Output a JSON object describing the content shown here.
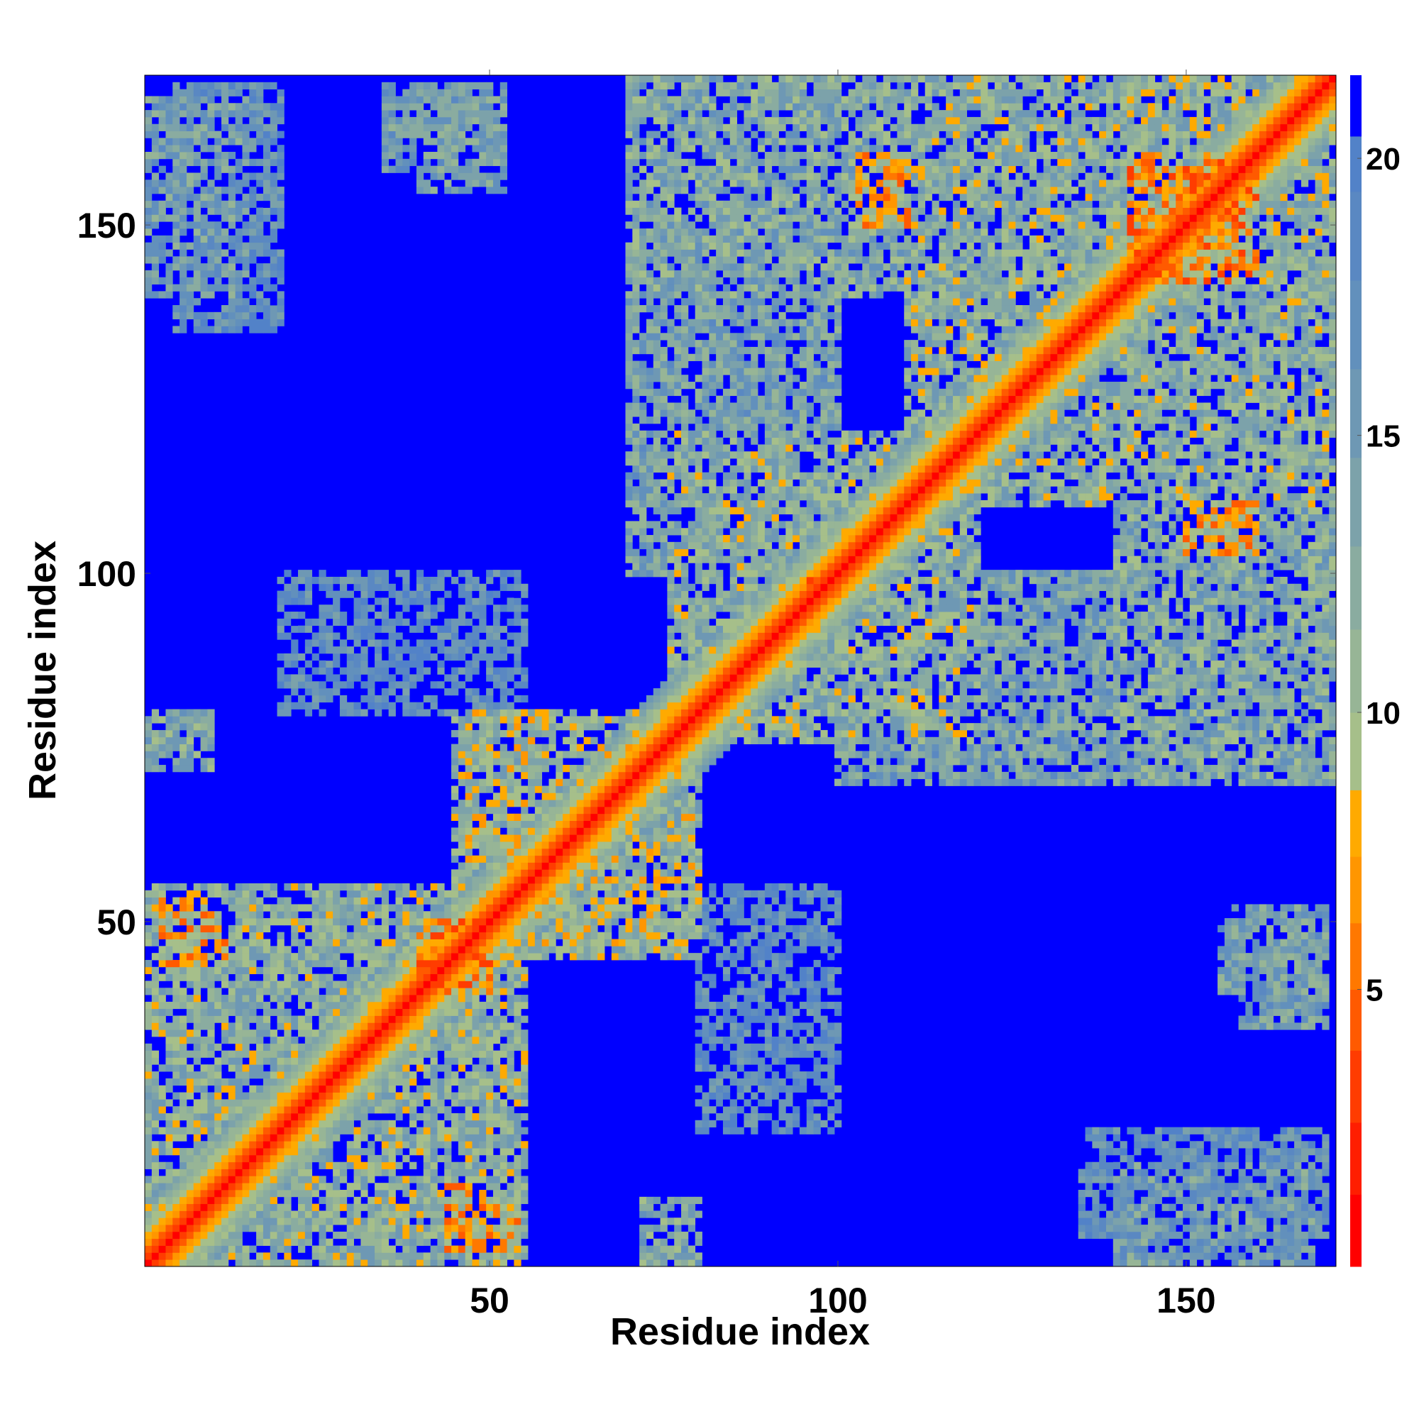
{
  "chart_data": {
    "type": "heatmap",
    "title": "",
    "xlabel": "Residue index",
    "ylabel": "Residue index",
    "xlim": [
      1,
      171
    ],
    "ylim": [
      1,
      171
    ],
    "x_ticks": [
      50,
      100,
      150
    ],
    "y_ticks": [
      50,
      100,
      150
    ],
    "x_tick_labels": [
      "50",
      "100",
      "150"
    ],
    "y_tick_labels": [
      "50",
      "100",
      "150"
    ],
    "colorbar": {
      "range": [
        0,
        21.5
      ],
      "ticks": [
        5,
        10,
        15,
        20
      ],
      "tick_labels": [
        "5",
        "10",
        "15",
        "20"
      ],
      "levels": [
        {
          "max": 1.3,
          "color": "#ff0000"
        },
        {
          "max": 2.6,
          "color": "#ff1e00"
        },
        {
          "max": 3.9,
          "color": "#ff3c00"
        },
        {
          "max": 5.0,
          "color": "#ff5a00"
        },
        {
          "max": 6.2,
          "color": "#ff7800"
        },
        {
          "max": 7.4,
          "color": "#ff9600"
        },
        {
          "max": 8.6,
          "color": "#ffaa00"
        },
        {
          "max": 10.0,
          "color": "#a6bf8a"
        },
        {
          "max": 11.5,
          "color": "#97b596"
        },
        {
          "max": 13.0,
          "color": "#8aaca0"
        },
        {
          "max": 14.6,
          "color": "#7ca2aa"
        },
        {
          "max": 16.2,
          "color": "#6e98b4"
        },
        {
          "max": 17.8,
          "color": "#6290bc"
        },
        {
          "max": 19.4,
          "color": "#5a88c2"
        },
        {
          "max": 20.4,
          "color": "#5282c8"
        },
        {
          "max": 21.5,
          "color": "#0000ff"
        }
      ]
    },
    "grid": false,
    "legend": "colorbar-right",
    "description_of_values": "symmetric residue-residue distance map; diagonal near 0, off-diagonal contact patches estimated",
    "patches": [
      {
        "x": [
          1,
          55
        ],
        "y": [
          1,
          55
        ],
        "value": 12
      },
      {
        "x": [
          40,
          50
        ],
        "y": [
          40,
          50
        ],
        "value": 7
      },
      {
        "x": [
          5,
          12
        ],
        "y": [
          44,
          52
        ],
        "value": 8
      },
      {
        "x": [
          44,
          54
        ],
        "y": [
          3,
          10
        ],
        "value": 8
      },
      {
        "x": [
          76,
          120
        ],
        "y": [
          76,
          120
        ],
        "value": 12
      },
      {
        "x": [
          96,
          100
        ],
        "y": [
          96,
          100
        ],
        "value": 7
      },
      {
        "x": [
          100,
          140
        ],
        "y": [
          70,
          100
        ],
        "value": 14
      },
      {
        "x": [
          70,
          100
        ],
        "y": [
          100,
          140
        ],
        "value": 14
      },
      {
        "x": [
          110,
          171
        ],
        "y": [
          110,
          171
        ],
        "value": 12
      },
      {
        "x": [
          142,
          160
        ],
        "y": [
          142,
          160
        ],
        "value": 7
      },
      {
        "x": [
          70,
          120
        ],
        "y": [
          140,
          171
        ],
        "value": 13
      },
      {
        "x": [
          140,
          171
        ],
        "y": [
          70,
          120
        ],
        "value": 13
      },
      {
        "x": [
          150,
          160
        ],
        "y": [
          103,
          110
        ],
        "value": 8
      },
      {
        "x": [
          103,
          110
        ],
        "y": [
          150,
          160
        ],
        "value": 8
      },
      {
        "x": [
          53,
          80
        ],
        "y": [
          45,
          75
        ],
        "value": 11
      },
      {
        "x": [
          45,
          75
        ],
        "y": [
          53,
          80
        ],
        "value": 11
      },
      {
        "x": [
          1,
          15
        ],
        "y": [
          140,
          168
        ],
        "value": 15
      },
      {
        "x": [
          140,
          168
        ],
        "y": [
          1,
          15
        ],
        "value": 15
      },
      {
        "x": [
          35,
          52
        ],
        "y": [
          158,
          170
        ],
        "value": 15
      },
      {
        "x": [
          158,
          170
        ],
        "y": [
          35,
          52
        ],
        "value": 15
      },
      {
        "x": [
          1,
          10
        ],
        "y": [
          72,
          80
        ],
        "value": 13
      },
      {
        "x": [
          72,
          80
        ],
        "y": [
          1,
          10
        ],
        "value": 13
      },
      {
        "x": [
          20,
          55
        ],
        "y": [
          80,
          100
        ],
        "value": 18
      },
      {
        "x": [
          80,
          100
        ],
        "y": [
          20,
          55
        ],
        "value": 18
      },
      {
        "x": [
          135,
          170
        ],
        "y": [
          5,
          20
        ],
        "value": 17
      },
      {
        "x": [
          5,
          20
        ],
        "y": [
          135,
          170
        ],
        "value": 17
      },
      {
        "x": [
          155,
          170
        ],
        "y": [
          40,
          52
        ],
        "value": 14
      },
      {
        "x": [
          40,
          52
        ],
        "y": [
          155,
          170
        ],
        "value": 14
      }
    ]
  }
}
